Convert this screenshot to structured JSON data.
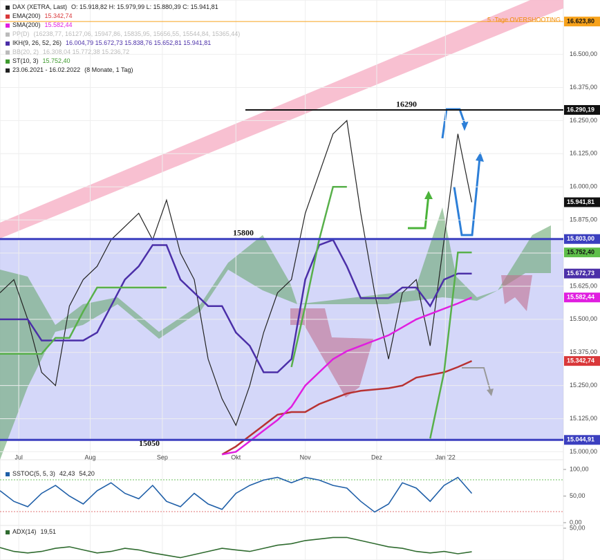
{
  "chart_data": [
    {
      "type": "line",
      "title": "DAX (XETRA, Last)",
      "legend": [
        {
          "name": "DAX (XETRA, Last)",
          "text": "O: 15.918,82  H: 15.979,99  L: 15.880,39  C: 15.941,81",
          "color": "#222222"
        },
        {
          "name": "EMA(200)",
          "text": "15.342,74",
          "color": "#d9383a"
        },
        {
          "name": "SMA(200)",
          "text": "15.582,44",
          "color": "#e01ee0"
        },
        {
          "name": "PP(D)",
          "text": "(16238,77, 16127,06, 15947,86, 15835,95, 15656,55, 15544,84, 15365,44)",
          "color": "#bbbbbb"
        },
        {
          "name": "IKH(9, 26, 52, 26)",
          "text": "16.004,79  15.672,73  15.838,76  15.652,81  15.941,81",
          "color": "#4b2fa8"
        },
        {
          "name": "BB(20, 2)",
          "text": "16.308,04  15.772,38  15.236,72",
          "color": "#bbbbbb"
        },
        {
          "name": "ST(10, 3)",
          "text": "15.752,40",
          "color": "#3e9a2e"
        },
        {
          "name": "23.06.2021 - 16.02.2022",
          "text": "(8 Monate, 1 Tag)",
          "color": "#222222"
        }
      ],
      "xlim": [
        0,
        40.6
      ],
      "xticks": [
        {
          "value": 1.35,
          "label": "Jul"
        },
        {
          "value": 6.5,
          "label": "Aug"
        },
        {
          "value": 11.7,
          "label": "Sep"
        },
        {
          "value": 17,
          "label": "Okt"
        },
        {
          "value": 22,
          "label": "Nov"
        },
        {
          "value": 27.15,
          "label": "Dez"
        },
        {
          "value": 32.1,
          "label": "Jan '22"
        }
      ],
      "ylim": [
        14970,
        16705
      ],
      "yticks": [
        {
          "value": 16500,
          "label": "16.500,00"
        },
        {
          "value": 16375,
          "label": "16.375,00"
        },
        {
          "value": 16250,
          "label": "16.250,00"
        },
        {
          "value": 16125,
          "label": "16.125,00"
        },
        {
          "value": 16000,
          "label": "16.000,00"
        },
        {
          "value": 15875,
          "label": "15.875,00"
        },
        {
          "value": 15750,
          "label": "15.750,00"
        },
        {
          "value": 15625,
          "label": "15.625,00"
        },
        {
          "value": 15500,
          "label": "15.500,00"
        },
        {
          "value": 15375,
          "label": "15.375,00"
        },
        {
          "value": 15250,
          "label": "15.250,00"
        },
        {
          "value": 15125,
          "label": "15.125,00"
        },
        {
          "value": 15000,
          "label": "15.000,00"
        }
      ],
      "series": [
        {
          "color": "#222222",
          "values": [
            15600,
            15650,
            15500,
            15300,
            15250,
            15550,
            15650,
            15700,
            15800,
            15850,
            15900,
            15800,
            15950,
            15750,
            15650,
            15350,
            15200,
            15100,
            15250,
            15450,
            15600,
            15650,
            15900,
            16050,
            16200,
            16250,
            15900,
            15600,
            15350,
            15600,
            15650,
            15400,
            15800,
            16200,
            15941.81
          ]
        },
        {
          "color": "#b83232",
          "values": [
            null,
            null,
            null,
            null,
            null,
            null,
            null,
            null,
            null,
            null,
            null,
            null,
            null,
            null,
            null,
            null,
            14990,
            15020,
            15060,
            15100,
            15140,
            15150,
            15150,
            15180,
            15200,
            15220,
            15230,
            15235,
            15240,
            15250,
            15280,
            15290,
            15300,
            15320,
            15342.74
          ]
        },
        {
          "color": "#e01ee0",
          "values": [
            null,
            null,
            null,
            null,
            null,
            null,
            null,
            null,
            null,
            null,
            null,
            null,
            null,
            null,
            null,
            null,
            14990,
            15000,
            15040,
            15080,
            15120,
            15170,
            15250,
            15300,
            15350,
            15380,
            15400,
            15420,
            15440,
            15470,
            15500,
            15520,
            15540,
            15560,
            15582.44
          ]
        },
        {
          "color": "#4b2fa8",
          "values": [
            15500,
            15500,
            15500,
            15420,
            15420,
            15420,
            15420,
            15450,
            15550,
            15650,
            15700,
            15780,
            15780,
            15650,
            15600,
            15550,
            15550,
            15450,
            15400,
            15300,
            15300,
            15350,
            15650,
            15780,
            15800,
            15700,
            15580,
            15580,
            15580,
            15620,
            15620,
            15550,
            15650,
            15672.73,
            15672.73
          ]
        },
        {
          "color": "#58b04a",
          "values": [
            15370,
            15370,
            15370,
            15370,
            15430,
            15430,
            15530,
            15620,
            15620,
            15620,
            15620,
            15620,
            15620,
            null,
            null,
            null,
            null,
            null,
            null,
            null,
            null,
            15320,
            15550,
            15800,
            16000,
            16000,
            null,
            null,
            null,
            null,
            null,
            15050,
            15300,
            15752.4,
            15752.4
          ]
        }
      ],
      "levels": [
        {
          "value": 16623.8,
          "label": "16.623,80",
          "color": "#f7a21b",
          "line": true
        },
        {
          "value": 16290.19,
          "label": "16.290,19",
          "color": "#111111",
          "line": true
        },
        {
          "value": 15941.81,
          "label": "15.941,81",
          "color": "#111111",
          "line": false
        },
        {
          "value": 15803,
          "label": "15.803,00",
          "color": "#3b3fbf",
          "line": true
        },
        {
          "value": 15752.4,
          "label": "15.752,40",
          "color": "#5fbf4a",
          "line": false
        },
        {
          "value": 15672.73,
          "label": "15.672,73",
          "color": "#4b2fa8",
          "line": false
        },
        {
          "value": 15582.44,
          "label": "15.582,44",
          "color": "#e01ee0",
          "line": false
        },
        {
          "value": 15342.74,
          "label": "15.342,74",
          "color": "#d9383a",
          "line": false
        },
        {
          "value": 15044.91,
          "label": "15.044,91",
          "color": "#3b3fbf",
          "line": true
        }
      ],
      "annotations": [
        "16290",
        "15800",
        "15050",
        "5 -Tage OVERSHOOTING"
      ]
    },
    {
      "type": "line",
      "title": "SSTOC(5, 5, 3)",
      "legend_values": [
        "42,43",
        "54,20"
      ],
      "ylim": [
        0,
        100
      ],
      "yticks": [
        {
          "value": 100,
          "label": "100,00"
        },
        {
          "value": 50,
          "label": "50,00"
        },
        {
          "value": 0,
          "label": "0,00"
        }
      ],
      "series": [
        {
          "color": "#1f5fa8",
          "values": [
            60,
            40,
            30,
            55,
            70,
            50,
            35,
            60,
            75,
            55,
            45,
            70,
            40,
            30,
            55,
            35,
            25,
            55,
            70,
            80,
            85,
            75,
            85,
            80,
            70,
            65,
            40,
            20,
            35,
            75,
            65,
            40,
            70,
            85,
            55
          ]
        }
      ]
    },
    {
      "type": "line",
      "title": "ADX(14)",
      "legend_values": [
        "19,51"
      ],
      "ylim": [
        0,
        50
      ],
      "yticks": [
        {
          "value": 50,
          "label": "50,00"
        }
      ],
      "series": [
        {
          "color": "#2f6b2f",
          "values": [
            25,
            20,
            18,
            20,
            24,
            26,
            22,
            18,
            20,
            24,
            22,
            18,
            15,
            12,
            16,
            20,
            24,
            22,
            20,
            24,
            28,
            30,
            34,
            36,
            38,
            38,
            34,
            30,
            26,
            24,
            20,
            18,
            20,
            17,
            19.51
          ]
        }
      ]
    }
  ]
}
